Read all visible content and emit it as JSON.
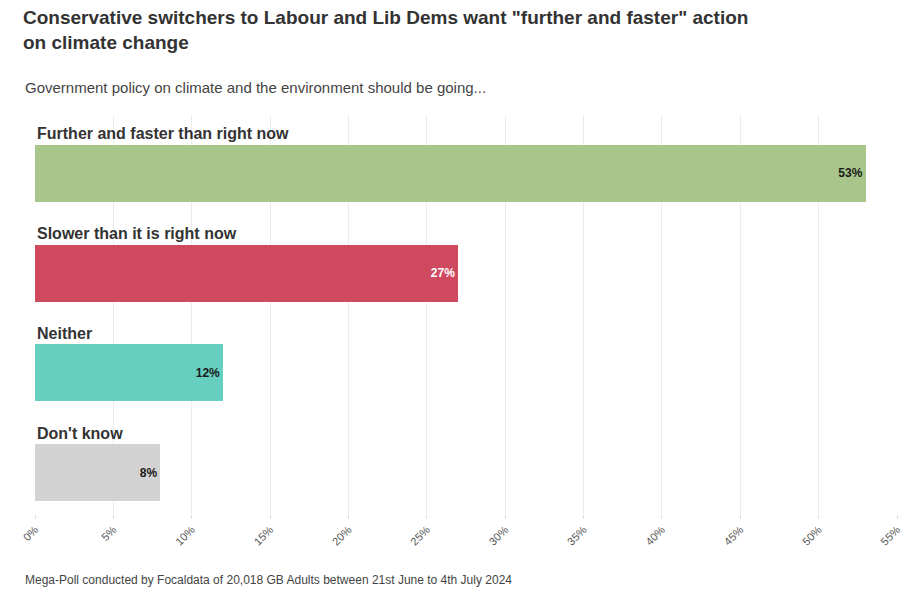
{
  "chart_data": {
    "type": "bar",
    "orientation": "horizontal",
    "title": "Conservative switchers to Labour and Lib Dems want \"further and faster\" action on climate change",
    "subtitle": "Government policy on climate and the environment should be going...",
    "source": "Mega-Poll conducted by Focaldata of 20,018 GB Adults between 21st June to 4th July 2024",
    "categories": [
      "Further and faster than right now",
      "Slower than it is right now",
      "Neither",
      "Don't know"
    ],
    "values": [
      53,
      27,
      12,
      8
    ],
    "value_labels": [
      "53%",
      "27%",
      "12%",
      "8%"
    ],
    "colors": [
      "#a8c68a",
      "#d04a5f",
      "#66cfc0",
      "#d3d3d3"
    ],
    "data_labels": true,
    "xlim": [
      0,
      55
    ],
    "xticks": [
      {
        "value": 0,
        "label": "0%"
      },
      {
        "value": 5,
        "label": "5%"
      },
      {
        "value": 10,
        "label": "10%"
      },
      {
        "value": 15,
        "label": "15%"
      },
      {
        "value": 20,
        "label": "20%"
      },
      {
        "value": 25,
        "label": "25%"
      },
      {
        "value": 30,
        "label": "30%"
      },
      {
        "value": 35,
        "label": "35%"
      },
      {
        "value": 40,
        "label": "40%"
      },
      {
        "value": 45,
        "label": "45%"
      },
      {
        "value": 50,
        "label": "50%"
      },
      {
        "value": 55,
        "label": "55%"
      }
    ],
    "grid": true,
    "tick_labels": "x"
  }
}
